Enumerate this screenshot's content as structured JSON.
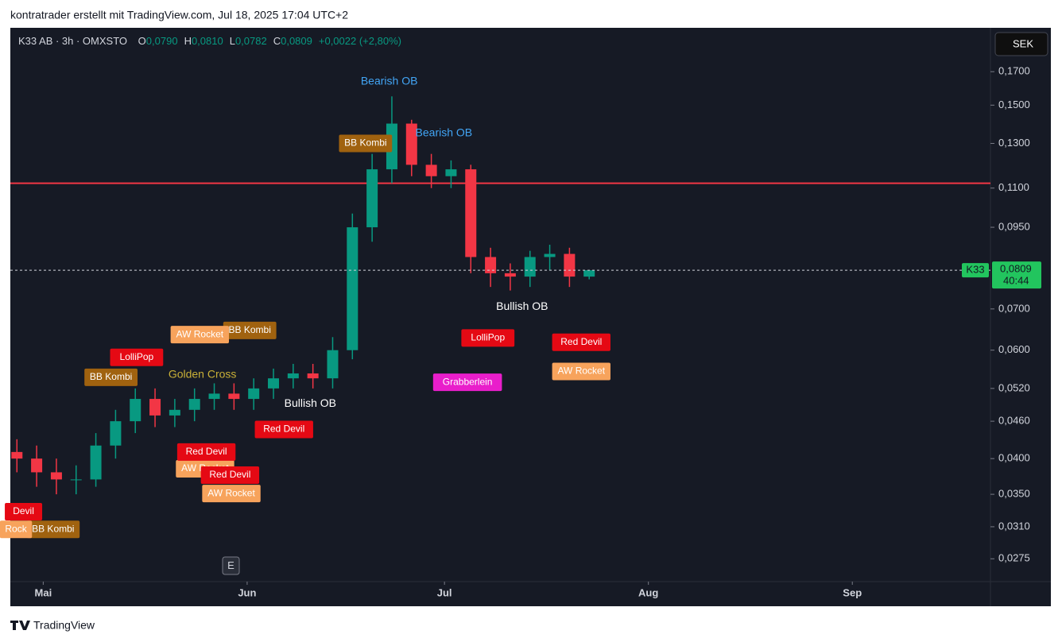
{
  "header": "kontratrader erstellt mit TradingView.com, Jul 18, 2025 17:04 UTC+2",
  "footer": "TradingView",
  "chart_data": {
    "type": "candlestick",
    "symbol": "K33 AB · 3h · OMXSTO",
    "legend": [
      {
        "label": "O",
        "value": "0,0790"
      },
      {
        "label": "H",
        "value": "0,0810"
      },
      {
        "label": "L",
        "value": "0,0782"
      },
      {
        "label": "C",
        "value": "0,0809"
      }
    ],
    "change": "+0,0022 (+2,80%)",
    "currency": "SEK",
    "last_price": {
      "name": "K33",
      "value": 0.0809,
      "label": "0,0809",
      "countdown": "40:44"
    },
    "scale": "log",
    "up_color": "#089981",
    "down_color": "#f23645",
    "x": [
      1,
      4,
      7,
      10,
      13,
      16,
      19,
      22,
      25,
      28,
      31,
      34,
      37,
      40,
      43,
      46,
      49,
      52,
      55,
      58,
      61,
      64,
      67,
      70,
      73,
      76,
      79,
      82,
      85,
      88
    ],
    "open": [
      0.041,
      0.04,
      0.038,
      0.037,
      0.037,
      0.042,
      0.046,
      0.05,
      0.047,
      0.048,
      0.05,
      0.051,
      0.05,
      0.052,
      0.054,
      0.055,
      0.054,
      0.06,
      0.095,
      0.118,
      0.14,
      0.12,
      0.115,
      0.118,
      0.085,
      0.08,
      0.079,
      0.085,
      0.086,
      0.079
    ],
    "high": [
      0.043,
      0.042,
      0.04,
      0.039,
      0.044,
      0.048,
      0.052,
      0.052,
      0.05,
      0.052,
      0.053,
      0.053,
      0.054,
      0.056,
      0.057,
      0.057,
      0.063,
      0.1,
      0.125,
      0.155,
      0.142,
      0.125,
      0.122,
      0.12,
      0.088,
      0.083,
      0.087,
      0.089,
      0.088,
      0.081
    ],
    "low": [
      0.038,
      0.036,
      0.035,
      0.035,
      0.036,
      0.04,
      0.044,
      0.045,
      0.045,
      0.046,
      0.048,
      0.048,
      0.048,
      0.05,
      0.052,
      0.052,
      0.052,
      0.058,
      0.09,
      0.112,
      0.115,
      0.11,
      0.11,
      0.08,
      0.076,
      0.075,
      0.076,
      0.081,
      0.076,
      0.0782
    ],
    "close": [
      0.04,
      0.038,
      0.037,
      0.037,
      0.042,
      0.046,
      0.05,
      0.047,
      0.048,
      0.05,
      0.051,
      0.05,
      0.052,
      0.054,
      0.055,
      0.054,
      0.06,
      0.095,
      0.118,
      0.14,
      0.12,
      0.115,
      0.118,
      0.085,
      0.08,
      0.079,
      0.085,
      0.086,
      0.079,
      0.0809
    ],
    "xlim": [
      0,
      149
    ],
    "xticks": [
      {
        "value": 5,
        "label": "Mai"
      },
      {
        "value": 36,
        "label": "Jun"
      },
      {
        "value": 66,
        "label": "Jul"
      },
      {
        "value": 97,
        "label": "Aug"
      },
      {
        "value": 128,
        "label": "Sep"
      }
    ],
    "ylim": [
      0.0254,
      0.2003
    ],
    "yticks": [
      {
        "value": 0.17,
        "label": "0,1700"
      },
      {
        "value": 0.15,
        "label": "0,1500"
      },
      {
        "value": 0.13,
        "label": "0,1300"
      },
      {
        "value": 0.11,
        "label": "0,1100"
      },
      {
        "value": 0.095,
        "label": "0,0950"
      },
      {
        "value": 0.07,
        "label": "0,0700"
      },
      {
        "value": 0.06,
        "label": "0,0600"
      },
      {
        "value": 0.052,
        "label": "0,0520"
      },
      {
        "value": 0.046,
        "label": "0,0460"
      },
      {
        "value": 0.04,
        "label": "0,0400"
      },
      {
        "value": 0.035,
        "label": "0,0350"
      },
      {
        "value": 0.031,
        "label": "0,0310"
      },
      {
        "value": 0.0275,
        "label": "0,0275"
      }
    ],
    "hlines": [
      {
        "value": 0.112,
        "color": "#f23645"
      }
    ],
    "annotations": [
      {
        "text": "Bearish OB",
        "x": 57.6,
        "y": 0.1637,
        "color": "#42a5f5",
        "box": false
      },
      {
        "text": "Bearish OB",
        "x": 65.9,
        "y": 0.135,
        "color": "#42a5f5",
        "box": false
      },
      {
        "text": "BB Kombi",
        "x": 54,
        "y": 0.13,
        "color": "#a0620f",
        "box": true
      },
      {
        "text": "BB Kombi",
        "x": 36.4,
        "y": 0.0646,
        "color": "#a0620f",
        "box": true
      },
      {
        "text": "BB Kombi",
        "x": 15.3,
        "y": 0.0542,
        "color": "#a0620f",
        "box": true
      },
      {
        "text": "BB Kombi",
        "x": 6.5,
        "y": 0.0307,
        "color": "#a0620f",
        "box": true
      },
      {
        "text": "AW Rocket",
        "x": 28.8,
        "y": 0.0636,
        "color": "#f7a35c",
        "box": true
      },
      {
        "text": "AW Rocket",
        "x": 29.6,
        "y": 0.0385,
        "color": "#f7a35c",
        "box": true
      },
      {
        "text": "AW Rocket",
        "x": 33.6,
        "y": 0.0351,
        "color": "#f7a35c",
        "box": true
      },
      {
        "text": "AW Rocket",
        "x": 86.8,
        "y": 0.0554,
        "color": "#f7a35c",
        "box": true
      },
      {
        "text": "Rock",
        "x": 0.85,
        "y": 0.0307,
        "color": "#f7a35c",
        "box": true
      },
      {
        "text": "Red Devil",
        "x": 41.6,
        "y": 0.0446,
        "color": "#e50914",
        "box": true
      },
      {
        "text": "Red Devil",
        "x": 29.8,
        "y": 0.041,
        "color": "#e50914",
        "box": true
      },
      {
        "text": "Red Devil",
        "x": 33.4,
        "y": 0.0376,
        "color": "#e50914",
        "box": true
      },
      {
        "text": "Red Devil",
        "x": 86.8,
        "y": 0.0618,
        "color": "#e50914",
        "box": true
      },
      {
        "text": "Devil",
        "x": 2,
        "y": 0.0328,
        "color": "#e50914",
        "box": true
      },
      {
        "text": "LolliPop",
        "x": 19.2,
        "y": 0.0584,
        "color": "#e50914",
        "box": true
      },
      {
        "text": "LolliPop",
        "x": 72.6,
        "y": 0.0628,
        "color": "#e50914",
        "box": true
      },
      {
        "text": "Grabberlein",
        "x": 69.5,
        "y": 0.0532,
        "color": "#e91ecb",
        "box": true
      },
      {
        "text": "Golden Cross",
        "x": 29.2,
        "y": 0.0547,
        "color": "#c9b037",
        "box": false
      },
      {
        "text": "Bullish OB",
        "x": 45.6,
        "y": 0.0491,
        "color": "#ffffff",
        "box": false
      },
      {
        "text": "Bullish OB",
        "x": 77.8,
        "y": 0.0705,
        "color": "#ffffff",
        "box": false
      }
    ],
    "button": "E"
  }
}
